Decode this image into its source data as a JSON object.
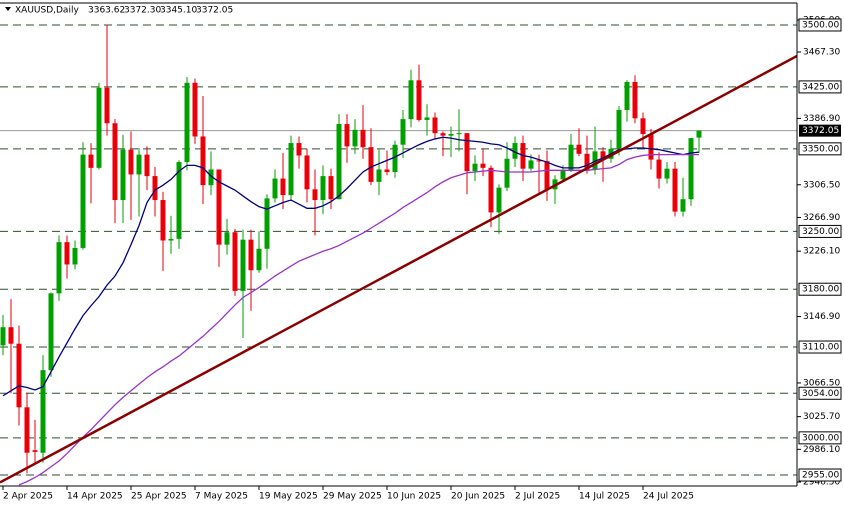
{
  "chart_data": {
    "type": "candlestick",
    "title": "XAUUSD,Daily",
    "ohlc_labels": [
      "3363.62",
      "3372.30",
      "3345.10",
      "3372.05"
    ],
    "categories": [
      "2 Apr 2025",
      null,
      null,
      null,
      null,
      null,
      null,
      null,
      "14 Apr 2025",
      null,
      null,
      null,
      null,
      null,
      null,
      null,
      "25 Apr 2025",
      null,
      null,
      null,
      null,
      null,
      null,
      null,
      "7 May 2025",
      null,
      null,
      null,
      null,
      null,
      null,
      null,
      "19 May 2025",
      null,
      null,
      null,
      null,
      null,
      null,
      null,
      "29 May 2025",
      null,
      null,
      null,
      null,
      null,
      null,
      null,
      "10 Jun 2025",
      null,
      null,
      null,
      null,
      null,
      null,
      null,
      "20 Jun 2025",
      null,
      null,
      null,
      null,
      null,
      null,
      null,
      "2 Jul 2025",
      null,
      null,
      null,
      null,
      null,
      null,
      null,
      "14 Jul 2025",
      null,
      null,
      null,
      null,
      null,
      null,
      null,
      "24 Jul 2025",
      null,
      null,
      null,
      null,
      null,
      null,
      null
    ],
    "open": [
      3112,
      3134,
      3114,
      3037,
      2985,
      2982,
      3082,
      3175,
      3237,
      3210,
      3230,
      3343,
      3327,
      3424,
      3381,
      3288,
      3349,
      3319,
      3343,
      3317,
      3288,
      3239,
      3241,
      3334,
      3430,
      3365,
      3306,
      3325,
      3234,
      3249,
      3178,
      3240,
      3203,
      3229,
      3290,
      3314,
      3294,
      3357,
      3342,
      3301,
      3288,
      3317,
      3289,
      3380,
      3353,
      3373,
      3352,
      3310,
      3325,
      3322,
      3355,
      3386,
      3433,
      3385,
      3388,
      3369,
      3366,
      3368,
      3369,
      3323,
      3332,
      3327,
      3273,
      3303,
      3338,
      3357,
      3326,
      3336,
      3335,
      3301,
      3313,
      3324,
      3355,
      3344,
      3325,
      3347,
      3338,
      3350,
      3397,
      3431,
      3387,
      3368,
      3337,
      3314,
      3326,
      3274,
      3289,
      3363.62
    ],
    "high": [
      3149,
      3168,
      3136,
      3055,
      3022,
      3100,
      3176,
      3245,
      3245,
      3239,
      3358,
      3357,
      3430,
      3500,
      3386,
      3367,
      3371,
      3351,
      3353,
      3328,
      3298,
      3269,
      3336,
      3437,
      3435,
      3414,
      3347,
      3325,
      3265,
      3253,
      3252,
      3252,
      3250,
      3295,
      3325,
      3345,
      3366,
      3365,
      3350,
      3325,
      3330,
      3326,
      3392,
      3392,
      3386,
      3403,
      3375,
      3349,
      3348,
      3360,
      3397,
      3446,
      3452,
      3404,
      3394,
      3371,
      3377,
      3398,
      3369,
      3342,
      3350,
      3330,
      3307,
      3358,
      3365,
      3366,
      3343,
      3343,
      3348,
      3318,
      3330,
      3368,
      3375,
      3366,
      3377,
      3352,
      3361,
      3402,
      3433,
      3439,
      3394,
      3374,
      3346,
      3334,
      3334,
      3315,
      3363,
      3372.3
    ],
    "low": [
      3100,
      3054,
      3015,
      2957,
      2968,
      2970,
      3074,
      3166,
      3193,
      3204,
      3228,
      3284,
      3325,
      3366,
      3260,
      3260,
      3264,
      3268,
      3300,
      3268,
      3202,
      3223,
      3229,
      3324,
      3356,
      3283,
      3294,
      3207,
      3222,
      3172,
      3121,
      3154,
      3200,
      3205,
      3285,
      3277,
      3287,
      3326,
      3285,
      3245,
      3271,
      3277,
      3289,
      3333,
      3344,
      3338,
      3306,
      3294,
      3318,
      3315,
      3339,
      3376,
      3383,
      3366,
      3362,
      3341,
      3340,
      3347,
      3295,
      3311,
      3317,
      3255,
      3247,
      3299,
      3328,
      3311,
      3323,
      3297,
      3287,
      3283,
      3310,
      3322,
      3341,
      3320,
      3319,
      3310,
      3333,
      3342,
      3383,
      3381,
      3351,
      3325,
      3302,
      3308,
      3268,
      3268,
      3281,
      3345.1
    ],
    "close": [
      3134,
      3114,
      3037,
      2982,
      2983,
      3082,
      3175,
      3237,
      3210,
      3230,
      3343,
      3327,
      3424,
      3381,
      3288,
      3349,
      3319,
      3343,
      3317,
      3288,
      3239,
      3241,
      3334,
      3430,
      3365,
      3306,
      3325,
      3234,
      3249,
      3178,
      3240,
      3203,
      3229,
      3290,
      3314,
      3294,
      3357,
      3342,
      3301,
      3288,
      3317,
      3289,
      3380,
      3353,
      3373,
      3352,
      3310,
      3325,
      3322,
      3355,
      3386,
      3433,
      3385,
      3388,
      3369,
      3366,
      3368,
      3369,
      3323,
      3332,
      3327,
      3273,
      3303,
      3338,
      3357,
      3326,
      3336,
      3335,
      3301,
      3313,
      3324,
      3355,
      3344,
      3325,
      3347,
      3338,
      3350,
      3397,
      3431,
      3387,
      3368,
      3337,
      3314,
      3326,
      3274,
      3289,
      3363,
      3372.05
    ],
    "up_color": "#00a000",
    "down_color": "#e8000b",
    "moving_averages": [
      {
        "color": "#000080",
        "values": [
          3051,
          3057,
          3063,
          3061,
          3058,
          3062,
          3080,
          3098,
          3115,
          3132,
          3148,
          3160,
          3171,
          3185,
          3196,
          3212,
          3234,
          3257,
          3285,
          3300,
          3306,
          3313,
          3323,
          3330,
          3330,
          3327,
          3317,
          3310,
          3305,
          3300,
          3293,
          3286,
          3280,
          3277,
          3281,
          3285,
          3288,
          3283,
          3278,
          3278,
          3281,
          3286,
          3293,
          3302,
          3312,
          3322,
          3328,
          3332,
          3336,
          3340,
          3345,
          3350,
          3355,
          3359,
          3362,
          3364,
          3363,
          3361,
          3360,
          3359,
          3358,
          3356,
          3355,
          3351,
          3346,
          3342,
          3340,
          3337,
          3334,
          3330,
          3327,
          3327,
          3327,
          3330,
          3335,
          3339,
          3344,
          3349,
          3350,
          3351,
          3351,
          3350,
          3349,
          3347,
          3345,
          3343,
          3345,
          3346
        ]
      },
      {
        "color": "#9932cc",
        "values": [
          null,
          null,
          2943,
          2947,
          2952,
          2958,
          2965,
          2972,
          2981,
          2991,
          3001,
          3010,
          3020,
          3030,
          3040,
          3049,
          3057,
          3065,
          3073,
          3080,
          3086,
          3093,
          3099,
          3107,
          3115,
          3123,
          3132,
          3141,
          3151,
          3161,
          3170,
          3176,
          3182,
          3189,
          3196,
          3202,
          3208,
          3214,
          3218,
          3222,
          3226,
          3229,
          3233,
          3238,
          3243,
          3248,
          3254,
          3260,
          3266,
          3272,
          3279,
          3285,
          3291,
          3297,
          3304,
          3310,
          3315,
          3318,
          3321,
          3322,
          3323,
          3324,
          3323,
          3322,
          3322,
          3322,
          3322,
          3323,
          3324,
          3324,
          3324,
          3324,
          3324,
          3324,
          3325,
          3326,
          3327,
          3331,
          3337,
          3340,
          3342,
          3343,
          3343,
          3343,
          3343,
          3343,
          3343,
          3343
        ]
      }
    ],
    "trendline": {
      "color": "#8b0000",
      "values": [
        2948,
        3399
      ]
    },
    "levels": [
      {
        "value": 3500,
        "label": "3500.00"
      },
      {
        "value": 3425,
        "label": "3425.00"
      },
      {
        "value": 3350,
        "label": "3350.00"
      },
      {
        "value": 3250,
        "label": "3250.00"
      },
      {
        "value": 3180,
        "label": "3180.00"
      },
      {
        "value": 3110,
        "label": "3110.00"
      },
      {
        "value": 3054,
        "label": "3054.00"
      },
      {
        "value": 3000,
        "label": "3000.00"
      },
      {
        "value": 2955,
        "label": "2955.00"
      }
    ],
    "level_color": "#2f4f2f",
    "price_line_color": "#9a9a9a",
    "ylim": [
      2941.7,
      3524.2
    ],
    "yticks": [
      {
        "value": 3506,
        "label": "3506.00"
      },
      {
        "value": 3467.3,
        "label": "3467.30"
      },
      {
        "value": 3386.9,
        "label": "3386.90"
      },
      {
        "value": 3306.5,
        "label": "3306.50"
      },
      {
        "value": 3266.9,
        "label": "3266.90"
      },
      {
        "value": 3226.1,
        "label": "3226.10"
      },
      {
        "value": 3146.9,
        "label": "3146.90"
      },
      {
        "value": 3066.5,
        "label": "3066.50"
      },
      {
        "value": 3025.7,
        "label": "3025.70"
      },
      {
        "value": 2986.1,
        "label": "2986.10"
      },
      {
        "value": 2946.5,
        "label": "2946.50"
      }
    ]
  }
}
